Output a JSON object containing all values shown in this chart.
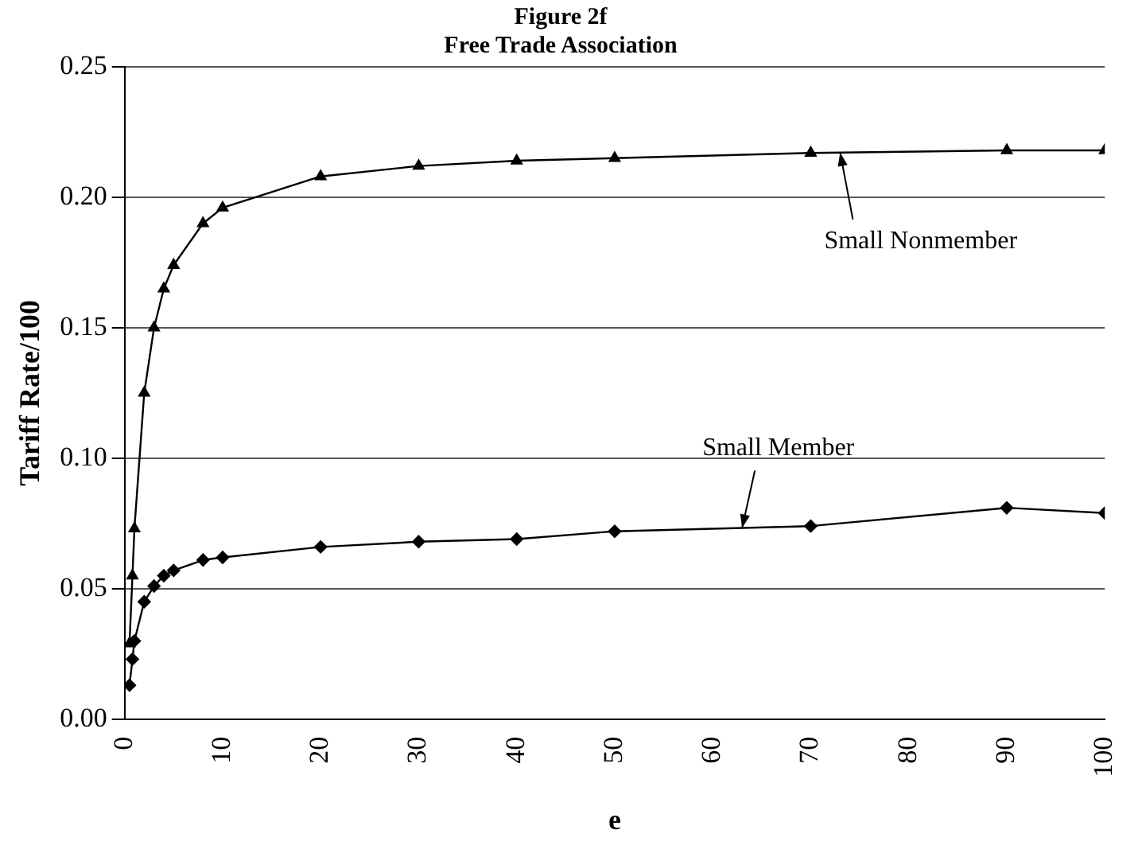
{
  "chart_data": {
    "type": "line",
    "title": "Figure 2f",
    "subtitle": "Free Trade Association",
    "xlabel": "e",
    "ylabel": "Tariff Rate/100",
    "series": [
      {
        "name": "Small Nonmember",
        "color": "#000000",
        "marker": "triangle",
        "x": [
          0.5,
          0.8,
          1,
          2,
          3,
          4,
          5,
          8,
          10,
          20,
          30,
          40,
          50,
          70,
          90,
          100
        ],
        "values": [
          0.029,
          0.055,
          0.073,
          0.125,
          0.15,
          0.165,
          0.174,
          0.19,
          0.196,
          0.208,
          0.212,
          0.214,
          0.215,
          0.217,
          0.218,
          0.218
        ]
      },
      {
        "name": "Small Member",
        "color": "#000000",
        "marker": "diamond",
        "x": [
          0.5,
          0.8,
          1,
          2,
          3,
          4,
          5,
          8,
          10,
          20,
          30,
          40,
          50,
          70,
          90,
          100
        ],
        "values": [
          0.013,
          0.023,
          0.03,
          0.045,
          0.051,
          0.055,
          0.057,
          0.061,
          0.062,
          0.066,
          0.068,
          0.069,
          0.072,
          0.074,
          0.081,
          0.079
        ]
      }
    ],
    "xlim": [
      0,
      100
    ],
    "xticks": [
      0,
      10,
      20,
      30,
      40,
      50,
      60,
      70,
      80,
      90,
      100
    ],
    "ylim": [
      0,
      0.25
    ],
    "yticks": [
      {
        "value": 0,
        "label": "0.00"
      },
      {
        "value": 0.05,
        "label": "0.05"
      },
      {
        "value": 0.1,
        "label": "0.10"
      },
      {
        "value": 0.15,
        "label": "0.15"
      },
      {
        "value": 0.2,
        "label": "0.20"
      },
      {
        "value": 0.25,
        "label": "0.25"
      }
    ],
    "grid": "y",
    "legend": false,
    "line_style": "solid"
  }
}
